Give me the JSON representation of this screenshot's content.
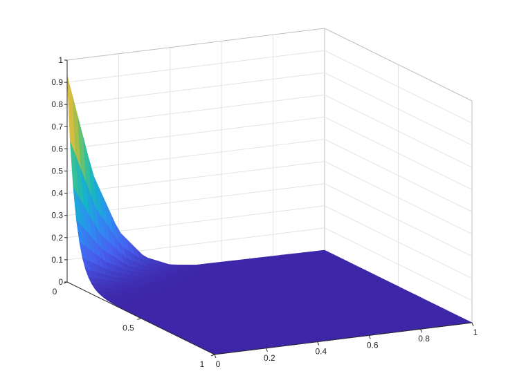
{
  "chart_data": {
    "type": "surface",
    "title": "",
    "xlabel": "",
    "ylabel": "",
    "zlabel": "",
    "xlim": [
      0,
      1
    ],
    "ylim": [
      0,
      1
    ],
    "zlim": [
      0,
      1
    ],
    "x_ticks": [
      "0",
      "0.2",
      "0.4",
      "0.6",
      "0.8",
      "1"
    ],
    "y_ticks": [
      "0",
      "0.5",
      "1"
    ],
    "z_ticks": [
      "0",
      "0.1",
      "0.2",
      "0.3",
      "0.4",
      "0.5",
      "0.6",
      "0.7",
      "0.8",
      "0.9",
      "1"
    ],
    "grid": true,
    "colormap": "parula",
    "colormap_stops": [
      "#3e26a8",
      "#4760f0",
      "#2d8ff0",
      "#14b3cd",
      "#3cc28e",
      "#a8be47",
      "#f4ba3c",
      "#f9fb15"
    ],
    "surface": {
      "description_of_shape": "max at x=0,y=0 decaying to zero",
      "x_profile_at_y0": [
        [
          0,
          0.93
        ],
        [
          0.1,
          0.47
        ],
        [
          0.2,
          0.2
        ],
        [
          0.3,
          0.07
        ],
        [
          0.4,
          0.02
        ],
        [
          0.5,
          0.005
        ],
        [
          1.0,
          0.0
        ]
      ],
      "y_decay": "rapid"
    }
  }
}
